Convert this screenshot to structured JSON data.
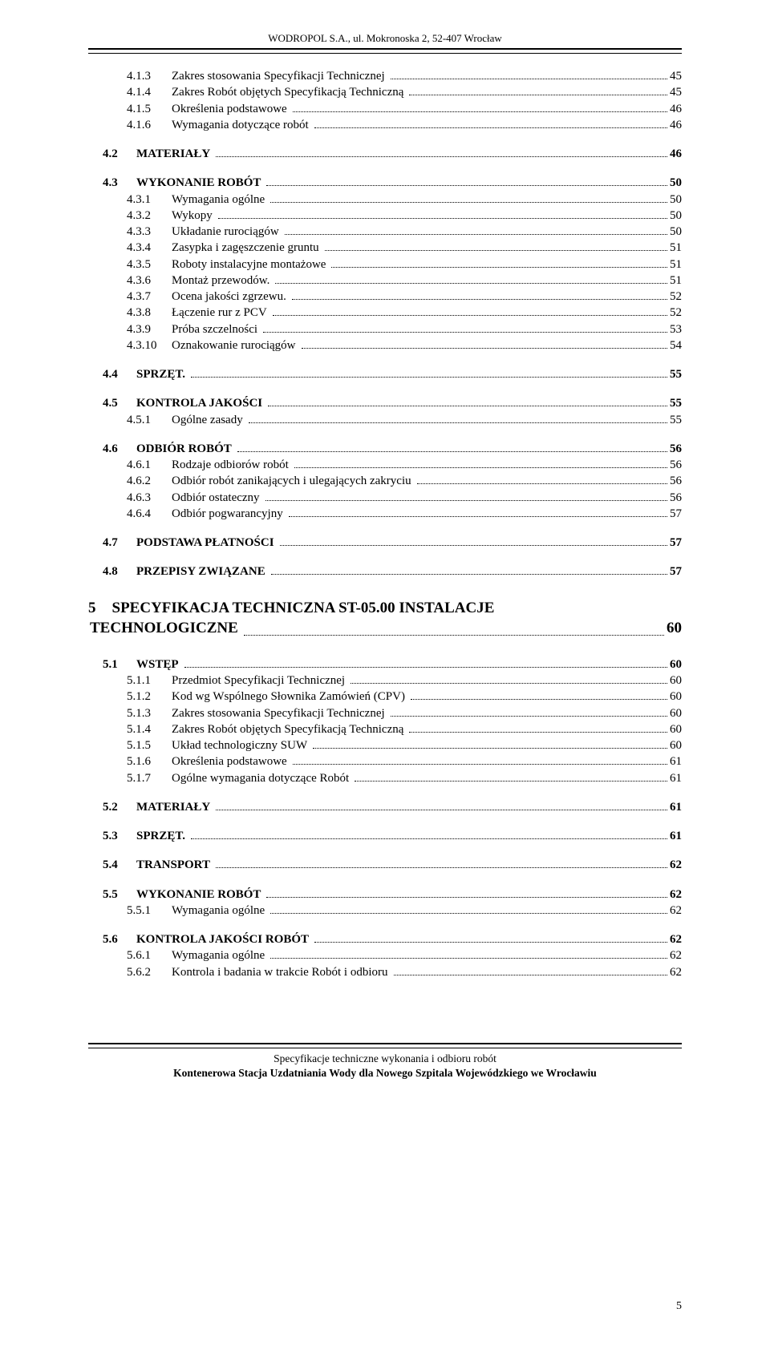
{
  "header": "WODROPOL S.A., ul. Mokronoska 2, 52-407 Wrocław",
  "page_number": "5",
  "footer_line1": "Specyfikacje techniczne wykonania i odbioru robót",
  "footer_line2": "Kontenerowa Stacja Uzdatniania Wody dla Nowego Szpitala Wojewódzkiego we Wrocławiu",
  "entries": [
    {
      "type": "sub",
      "num": "4.1.3",
      "label": "Zakres stosowania Specyfikacji Technicznej",
      "page": "45"
    },
    {
      "type": "sub",
      "num": "4.1.4",
      "label": "Zakres Robót objętych Specyfikacją Techniczną",
      "page": "45"
    },
    {
      "type": "sub",
      "num": "4.1.5",
      "label": "Określenia podstawowe",
      "page": "46"
    },
    {
      "type": "sub",
      "num": "4.1.6",
      "label": "Wymagania dotyczące robót",
      "page": "46"
    },
    {
      "type": "spacer"
    },
    {
      "type": "sec",
      "num": "4.2",
      "label": "MATERIAŁY",
      "page": "46"
    },
    {
      "type": "spacer"
    },
    {
      "type": "sec",
      "num": "4.3",
      "label": "WYKONANIE ROBÓT",
      "page": "50"
    },
    {
      "type": "sub",
      "num": "4.3.1",
      "label": "Wymagania ogólne",
      "page": "50"
    },
    {
      "type": "sub",
      "num": "4.3.2",
      "label": "Wykopy",
      "page": "50"
    },
    {
      "type": "sub",
      "num": "4.3.3",
      "label": "Układanie rurociągów",
      "page": "50"
    },
    {
      "type": "sub",
      "num": "4.3.4",
      "label": "Zasypka i zagęszczenie gruntu",
      "page": "51"
    },
    {
      "type": "sub",
      "num": "4.3.5",
      "label": "Roboty instalacyjne montażowe",
      "page": "51"
    },
    {
      "type": "sub",
      "num": "4.3.6",
      "label": "Montaż przewodów.",
      "page": "51"
    },
    {
      "type": "sub",
      "num": "4.3.7",
      "label": "Ocena  jakości  zgrzewu.",
      "page": "52"
    },
    {
      "type": "sub",
      "num": "4.3.8",
      "label": "Łączenie rur z PCV",
      "page": "52"
    },
    {
      "type": "sub",
      "num": "4.3.9",
      "label": "Próba szczelności",
      "page": "53"
    },
    {
      "type": "sub",
      "num": "4.3.10",
      "label": "Oznakowanie rurociągów",
      "page": "54"
    },
    {
      "type": "spacer"
    },
    {
      "type": "sec",
      "num": "4.4",
      "label": "SPRZĘT.",
      "page": "55"
    },
    {
      "type": "spacer"
    },
    {
      "type": "sec",
      "num": "4.5",
      "label": "KONTROLA JAKOŚCI",
      "page": "55"
    },
    {
      "type": "sub",
      "num": "4.5.1",
      "label": "Ogólne zasady",
      "page": "55"
    },
    {
      "type": "spacer"
    },
    {
      "type": "sec",
      "num": "4.6",
      "label": "ODBIÓR  ROBÓT",
      "page": "56"
    },
    {
      "type": "sub",
      "num": "4.6.1",
      "label": "Rodzaje odbiorów robót",
      "page": "56"
    },
    {
      "type": "sub",
      "num": "4.6.2",
      "label": "Odbiór robót zanikających i ulegających zakryciu",
      "page": "56"
    },
    {
      "type": "sub",
      "num": "4.6.3",
      "label": "Odbiór  ostateczny",
      "page": "56"
    },
    {
      "type": "sub",
      "num": "4.6.4",
      "label": "Odbiór pogwarancyjny",
      "page": "57"
    },
    {
      "type": "spacer"
    },
    {
      "type": "sec",
      "num": "4.7",
      "label": "PODSTAWA  PŁATNOŚCI",
      "page": "57"
    },
    {
      "type": "spacer"
    },
    {
      "type": "sec",
      "num": "4.8",
      "label": "PRZEPISY ZWIĄZANE",
      "page": "57"
    },
    {
      "type": "chapter",
      "num": "5",
      "label": "SPECYFIKACJA TECHNICZNA ST-05.00 INSTALACJE TECHNOLOGICZNE",
      "page": "60"
    },
    {
      "type": "sec",
      "num": "5.1",
      "label": "WSTĘP",
      "page": "60"
    },
    {
      "type": "sub",
      "num": "5.1.1",
      "label": "Przedmiot Specyfikacji Technicznej",
      "page": "60"
    },
    {
      "type": "sub",
      "num": "5.1.2",
      "label": "Kod wg Wspólnego Słownika Zamówień (CPV)",
      "page": "60"
    },
    {
      "type": "sub",
      "num": "5.1.3",
      "label": "Zakres stosowania Specyfikacji Technicznej",
      "page": "60"
    },
    {
      "type": "sub",
      "num": "5.1.4",
      "label": "Zakres Robót objętych Specyfikacją Techniczną",
      "page": "60"
    },
    {
      "type": "sub",
      "num": "5.1.5",
      "label": "Układ technologiczny SUW",
      "page": "60"
    },
    {
      "type": "sub",
      "num": "5.1.6",
      "label": "Określenia podstawowe",
      "page": "61"
    },
    {
      "type": "sub",
      "num": "5.1.7",
      "label": "Ogólne wymagania dotyczące Robót",
      "page": "61"
    },
    {
      "type": "spacer"
    },
    {
      "type": "sec",
      "num": "5.2",
      "label": "MATERIAŁY",
      "page": "61"
    },
    {
      "type": "spacer"
    },
    {
      "type": "sec",
      "num": "5.3",
      "label": "SPRZĘT.",
      "page": "61"
    },
    {
      "type": "spacer"
    },
    {
      "type": "sec",
      "num": "5.4",
      "label": "TRANSPORT",
      "page": "62"
    },
    {
      "type": "spacer"
    },
    {
      "type": "sec",
      "num": "5.5",
      "label": "WYKONANIE ROBÓT",
      "page": "62"
    },
    {
      "type": "sub",
      "num": "5.5.1",
      "label": "Wymagania ogólne",
      "page": "62"
    },
    {
      "type": "spacer"
    },
    {
      "type": "sec",
      "num": "5.6",
      "label": "KONTROLA JAKOŚCI ROBÓT",
      "page": "62"
    },
    {
      "type": "sub",
      "num": "5.6.1",
      "label": "Wymagania ogólne",
      "page": "62"
    },
    {
      "type": "sub",
      "num": "5.6.2",
      "label": "Kontrola i badania w trakcie Robót i odbioru",
      "page": "62"
    }
  ]
}
